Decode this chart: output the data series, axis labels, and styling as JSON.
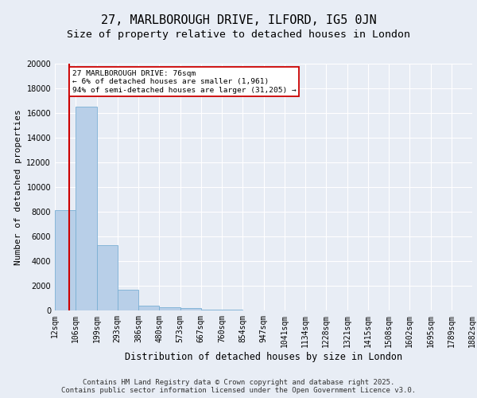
{
  "title1": "27, MARLBOROUGH DRIVE, ILFORD, IG5 0JN",
  "title2": "Size of property relative to detached houses in London",
  "xlabel": "Distribution of detached houses by size in London",
  "ylabel": "Number of detached properties",
  "bar_values": [
    8100,
    16500,
    5300,
    1700,
    400,
    280,
    180,
    80,
    50,
    30,
    20,
    10,
    8,
    5,
    4,
    3,
    2,
    2,
    1,
    1
  ],
  "bin_labels": [
    "12sqm",
    "106sqm",
    "199sqm",
    "293sqm",
    "386sqm",
    "480sqm",
    "573sqm",
    "667sqm",
    "760sqm",
    "854sqm",
    "947sqm",
    "1041sqm",
    "1134sqm",
    "1228sqm",
    "1321sqm",
    "1415sqm",
    "1508sqm",
    "1602sqm",
    "1695sqm",
    "1789sqm",
    "1882sqm"
  ],
  "bar_color": "#b8cfe8",
  "bar_edge_color": "#7aafd4",
  "red_line_color": "#cc0000",
  "annotation_text": "27 MARLBOROUGH DRIVE: 76sqm\n← 6% of detached houses are smaller (1,961)\n94% of semi-detached houses are larger (31,205) →",
  "annotation_box_color": "#ffffff",
  "annotation_box_edge": "#cc0000",
  "ylim": [
    0,
    20000
  ],
  "yticks": [
    0,
    2000,
    4000,
    6000,
    8000,
    10000,
    12000,
    14000,
    16000,
    18000,
    20000
  ],
  "bg_color": "#e8edf5",
  "plot_bg_color": "#e8edf5",
  "grid_color": "#ffffff",
  "footer_text": "Contains HM Land Registry data © Crown copyright and database right 2025.\nContains public sector information licensed under the Open Government Licence v3.0.",
  "title1_fontsize": 11,
  "title2_fontsize": 9.5,
  "xlabel_fontsize": 8.5,
  "ylabel_fontsize": 8,
  "tick_fontsize": 7,
  "footer_fontsize": 6.5,
  "red_line_bin_index": 0.68
}
